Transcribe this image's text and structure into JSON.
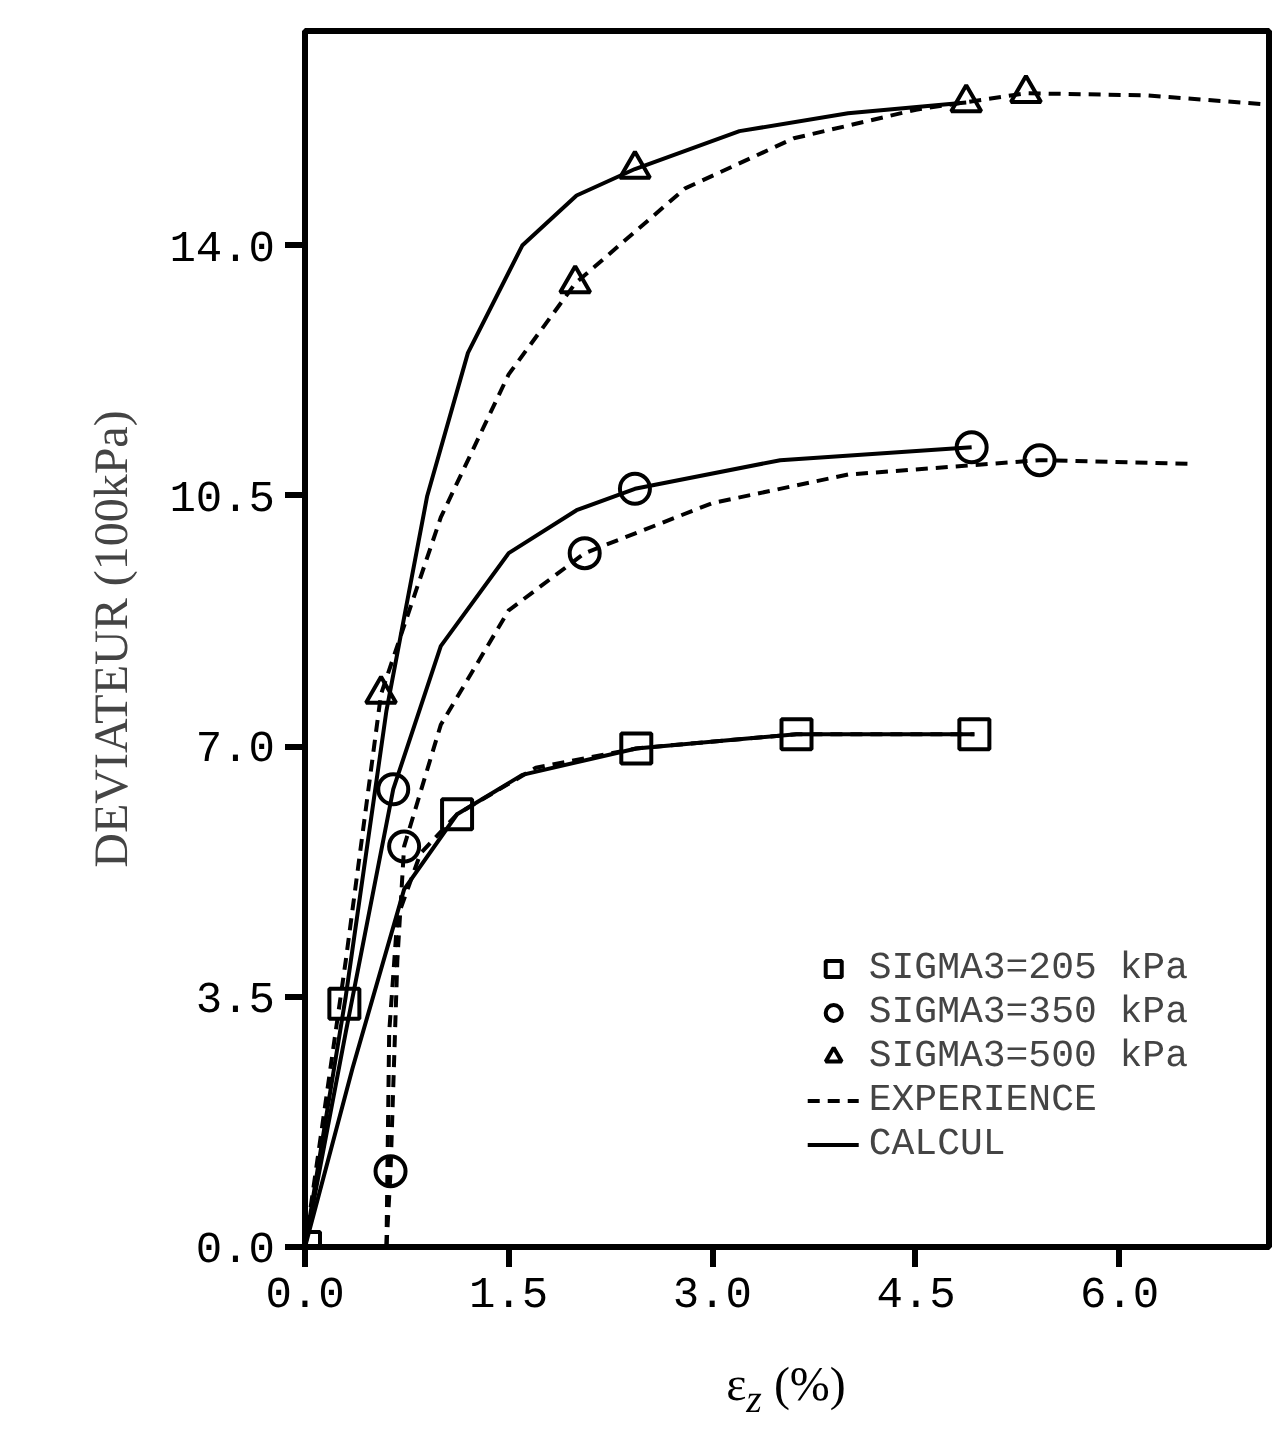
{
  "chart_data": {
    "type": "line",
    "xlabel": "ε$_{z}$ (%)",
    "ylabel": "DEVIATEUR (100kPa)",
    "xlim": [
      0,
      7.1
    ],
    "ylim": [
      0,
      17
    ],
    "xticks": [
      {
        "value": 0,
        "label": "0.0"
      },
      1.5,
      {
        "value": 3,
        "label": "3.0"
      },
      4.5,
      {
        "value": 6,
        "label": "6.0"
      }
    ],
    "yticks": [
      {
        "value": 0,
        "label": "0.0"
      },
      3.5,
      {
        "value": 7,
        "label": "7.0"
      },
      10.5,
      {
        "value": 14,
        "label": "14.0"
      }
    ],
    "grid": false,
    "legend": "bottom right",
    "series": [
      {
        "name": "SIGMA3=205 kPa",
        "type": "scatter",
        "marker": "square",
        "color": "#000000",
        "x": [
          0,
          0.29,
          1.12,
          2.44,
          3.62,
          4.93
        ],
        "values": [
          0,
          3.4,
          6.05,
          6.97,
          7.17,
          7.17
        ]
      },
      {
        "name": "SIGMA3=350 kPa",
        "type": "scatter",
        "marker": "circle",
        "color": "#000000",
        "x": [
          0.63,
          0.65,
          0.73,
          2.06,
          2.43,
          4.91,
          5.41
        ],
        "values": [
          1.06,
          6.4,
          5.6,
          9.7,
          10.6,
          11.18,
          11.0
        ]
      },
      {
        "name": "SIGMA3=500 kPa",
        "type": "scatter",
        "marker": "triangle",
        "color": "#000000",
        "x": [
          0.56,
          1.99,
          2.43,
          4.87,
          5.31
        ],
        "values": [
          7.73,
          13.47,
          15.07,
          16.0,
          16.13
        ]
      },
      {
        "name": "EXPERIENCE",
        "line_style": "dashed",
        "color": "#000000",
        "x": [
          0.6,
          0.62,
          0.68,
          0.85,
          1.12,
          1.7,
          2.44,
          3.62,
          4.93
        ],
        "values": [
          0,
          3.0,
          4.6,
          5.5,
          6.05,
          6.7,
          6.97,
          7.17,
          7.17
        ]
      },
      {
        "line_style": "dashed",
        "color": "#000000",
        "x": [
          0.6,
          0.63,
          0.68,
          0.73,
          1.0,
          1.5,
          2.06,
          3.0,
          4.0,
          5.41,
          6.5
        ],
        "values": [
          0,
          1.06,
          4.0,
          5.6,
          7.3,
          8.9,
          9.7,
          10.4,
          10.8,
          11.0,
          10.95
        ]
      },
      {
        "line_style": "dashed",
        "color": "#000000",
        "x": [
          0,
          0.3,
          0.56,
          1.0,
          1.5,
          1.99,
          2.8,
          3.6,
          4.5,
          5.31,
          6.2,
          7.1
        ],
        "values": [
          0,
          4.0,
          7.73,
          10.2,
          12.2,
          13.47,
          14.8,
          15.5,
          15.9,
          16.13,
          16.1,
          15.97
        ]
      },
      {
        "name": "CALCUL",
        "line_style": "solid",
        "color": "#000000",
        "x": [
          0,
          0.35,
          0.73,
          1.12,
          1.6,
          2.44,
          3.62,
          4.93
        ],
        "values": [
          0,
          2.5,
          5.0,
          6.05,
          6.6,
          6.97,
          7.17,
          7.17
        ]
      },
      {
        "line_style": "solid",
        "color": "#000000",
        "x": [
          0,
          0.3,
          0.65,
          1.0,
          1.5,
          2.0,
          2.43,
          3.5,
          4.91
        ],
        "values": [
          0,
          3.0,
          6.4,
          8.4,
          9.7,
          10.3,
          10.6,
          11.0,
          11.18
        ]
      },
      {
        "line_style": "solid",
        "color": "#000000",
        "x": [
          0,
          0.3,
          0.6,
          0.9,
          1.2,
          1.6,
          2.0,
          2.43,
          3.2,
          4.0,
          4.87
        ],
        "values": [
          0,
          3.5,
          7.5,
          10.5,
          12.5,
          14.0,
          14.7,
          15.07,
          15.6,
          15.85,
          16.0
        ]
      }
    ]
  }
}
